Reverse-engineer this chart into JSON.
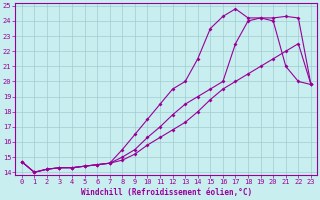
{
  "xlabel": "Windchill (Refroidissement éolien,°C)",
  "bg_color": "#c8eef0",
  "line_color": "#990099",
  "marker": "D",
  "xlim": [
    -0.5,
    23.5
  ],
  "ylim": [
    13.8,
    25.2
  ],
  "xticks": [
    0,
    1,
    2,
    3,
    4,
    5,
    6,
    7,
    8,
    9,
    10,
    11,
    12,
    13,
    14,
    15,
    16,
    17,
    18,
    19,
    20,
    21,
    22,
    23
  ],
  "yticks": [
    14,
    15,
    16,
    17,
    18,
    19,
    20,
    21,
    22,
    23,
    24,
    25
  ],
  "grid_color": "#a0ccd0",
  "line1_x": [
    0,
    1,
    2,
    3,
    4,
    5,
    6,
    7,
    8,
    9,
    10,
    11,
    12,
    13,
    14,
    15,
    16,
    17,
    18,
    19,
    20,
    21,
    22,
    23
  ],
  "line1_y": [
    14.7,
    14.0,
    14.2,
    14.3,
    14.3,
    14.4,
    14.5,
    14.6,
    15.5,
    16.5,
    17.5,
    18.5,
    19.5,
    20.0,
    21.5,
    23.5,
    24.3,
    24.8,
    24.2,
    24.2,
    24.0,
    21.0,
    20.0,
    19.8
  ],
  "line2_x": [
    0,
    1,
    2,
    3,
    4,
    5,
    6,
    7,
    8,
    9,
    10,
    11,
    12,
    13,
    14,
    15,
    16,
    17,
    18,
    19,
    20,
    21,
    22,
    23
  ],
  "line2_y": [
    14.7,
    14.0,
    14.2,
    14.3,
    14.3,
    14.4,
    14.5,
    14.6,
    14.8,
    15.2,
    15.8,
    16.3,
    16.8,
    17.3,
    18.0,
    18.8,
    19.5,
    20.0,
    20.5,
    21.0,
    21.5,
    22.0,
    22.5,
    19.8
  ],
  "line3_x": [
    0,
    1,
    2,
    3,
    4,
    5,
    6,
    7,
    8,
    9,
    10,
    11,
    12,
    13,
    14,
    15,
    16,
    17,
    18,
    19,
    20,
    21,
    22,
    23
  ],
  "line3_y": [
    14.7,
    14.0,
    14.2,
    14.3,
    14.3,
    14.4,
    14.5,
    14.6,
    15.0,
    15.5,
    16.3,
    17.0,
    17.8,
    18.5,
    19.0,
    19.5,
    20.0,
    22.5,
    24.0,
    24.2,
    24.2,
    24.3,
    24.2,
    19.8
  ],
  "tick_fontsize": 5,
  "xlabel_fontsize": 5.5
}
